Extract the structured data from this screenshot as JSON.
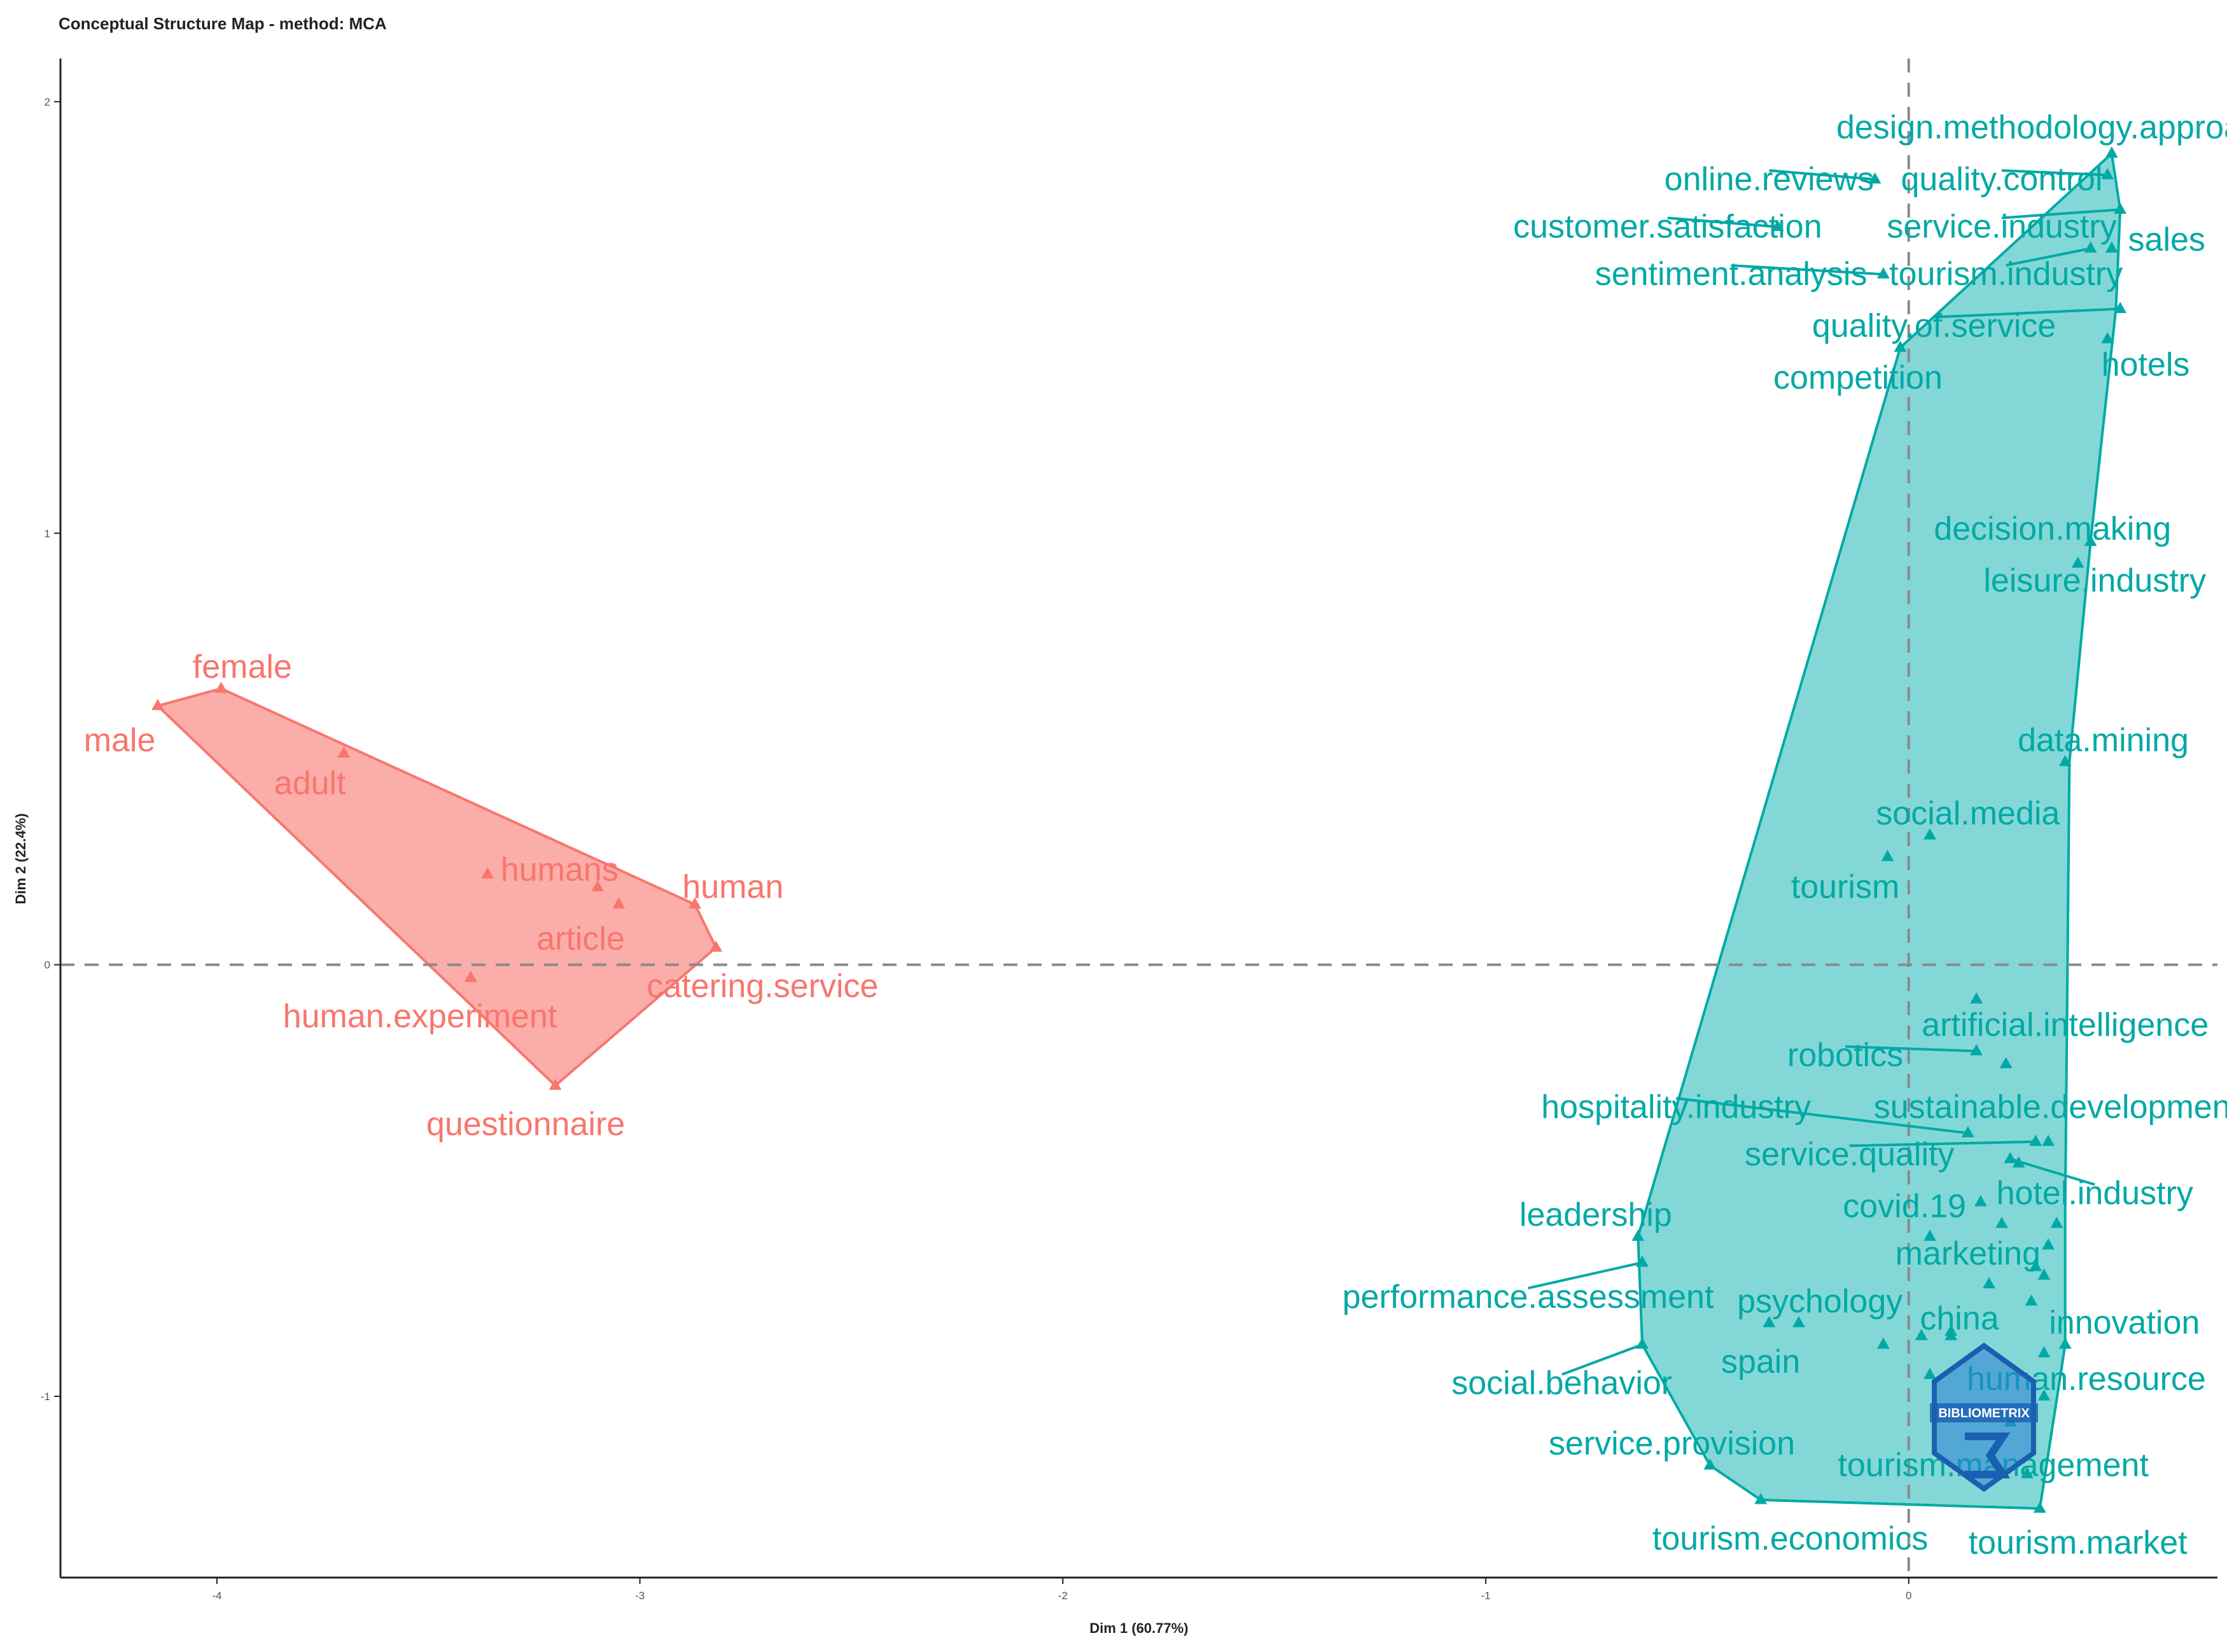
{
  "chart_data": {
    "type": "scatter",
    "title": "Conceptual Structure Map - method: MCA",
    "xlabel": "Dim 1 (60.77%)",
    "ylabel": "Dim 2 (22.4%)",
    "xlim": [
      -4.37,
      0.73
    ],
    "ylim": [
      -1.42,
      2.1
    ],
    "x_ticks": [
      {
        "value": -4,
        "label": "-4"
      },
      {
        "value": -3,
        "label": "-3"
      },
      {
        "value": -2,
        "label": "-2"
      },
      {
        "value": -1,
        "label": "-1"
      },
      {
        "value": 0,
        "label": "0"
      }
    ],
    "y_ticks": [
      {
        "value": -1,
        "label": "-1"
      },
      {
        "value": 0,
        "label": "0"
      },
      {
        "value": 1,
        "label": "1"
      },
      {
        "value": 2,
        "label": "2"
      }
    ],
    "reference_lines": {
      "x": 0,
      "y": 0,
      "style": "dashed"
    },
    "grid": false,
    "legend": "none",
    "watermark_text": "BIBLIOMETRIX",
    "clusters": [
      {
        "id": 1,
        "color": "#F8766D",
        "fill": "#FBA9A4",
        "hull": [
          [
            -4.14,
            0.6
          ],
          [
            -3.99,
            0.64
          ],
          [
            -2.87,
            0.14
          ],
          [
            -2.82,
            0.04
          ],
          [
            -3.2,
            -0.28
          ]
        ],
        "points": [
          {
            "label": "female",
            "x": -3.99,
            "y": 0.64,
            "lx": -3.94,
            "ly": 0.69
          },
          {
            "label": "male",
            "x": -4.14,
            "y": 0.6,
            "lx": -4.23,
            "ly": 0.52
          },
          {
            "label": "adult",
            "x": -3.7,
            "y": 0.49,
            "lx": -3.78,
            "ly": 0.42
          },
          {
            "label": "humans",
            "x": -3.1,
            "y": 0.18,
            "lx": -3.19,
            "ly": 0.22
          },
          {
            "label": "article",
            "x": -3.05,
            "y": 0.14,
            "lx": -3.14,
            "ly": 0.06
          },
          {
            "label": "human",
            "x": -2.87,
            "y": 0.14,
            "lx": -2.78,
            "ly": 0.18
          },
          {
            "label": "catering.service",
            "x": -2.82,
            "y": 0.04,
            "lx": -2.71,
            "ly": -0.05
          },
          {
            "label": "human.experiment",
            "x": -3.4,
            "y": -0.03,
            "lx": -3.52,
            "ly": -0.12
          },
          {
            "label": "questionnaire",
            "x": -3.2,
            "y": -0.28,
            "lx": -3.27,
            "ly": -0.37
          }
        ],
        "extra_points": [
          [
            -3.36,
            0.21
          ]
        ]
      },
      {
        "id": 2,
        "color": "#00A9A5",
        "fill": "#7CD6D5",
        "hull": [
          [
            -0.02,
            1.43
          ],
          [
            0.48,
            1.88
          ],
          [
            0.5,
            1.75
          ],
          [
            0.49,
            1.52
          ],
          [
            0.43,
            0.98
          ],
          [
            0.38,
            0.47
          ],
          [
            0.37,
            -0.57
          ],
          [
            0.37,
            -0.88
          ],
          [
            0.31,
            -1.26
          ],
          [
            -0.35,
            -1.24
          ],
          [
            -0.47,
            -1.16
          ],
          [
            -0.63,
            -0.88
          ],
          [
            -0.64,
            -0.63
          ]
        ],
        "points": [
          {
            "label": "design.methodology.approach",
            "x": 0.48,
            "y": 1.88,
            "lx": 0.35,
            "ly": 1.94
          },
          {
            "label": "online.reviews",
            "x": -0.08,
            "y": 1.82,
            "lx": -0.33,
            "ly": 1.82
          },
          {
            "label": "quality.control",
            "x": 0.47,
            "y": 1.83,
            "lx": 0.22,
            "ly": 1.82
          },
          {
            "label": "customer.satisfaction",
            "x": -0.31,
            "y": 1.71,
            "lx": -0.57,
            "ly": 1.71
          },
          {
            "label": "service.industry",
            "x": 0.5,
            "y": 1.75,
            "lx": 0.22,
            "ly": 1.71
          },
          {
            "label": "sales",
            "x": 0.48,
            "y": 1.66,
            "lx": 0.61,
            "ly": 1.68
          },
          {
            "label": "sentiment.analysis",
            "x": -0.06,
            "y": 1.6,
            "lx": -0.42,
            "ly": 1.6
          },
          {
            "label": "tourism.industry",
            "x": 0.43,
            "y": 1.66,
            "lx": 0.23,
            "ly": 1.6
          },
          {
            "label": "quality.of.service",
            "x": 0.5,
            "y": 1.52,
            "lx": 0.06,
            "ly": 1.48
          },
          {
            "label": "hotels",
            "x": 0.47,
            "y": 1.45,
            "lx": 0.56,
            "ly": 1.39
          },
          {
            "label": "competition",
            "x": -0.02,
            "y": 1.43,
            "lx": -0.12,
            "ly": 1.36
          },
          {
            "label": "decision.making",
            "x": 0.43,
            "y": 0.98,
            "lx": 0.34,
            "ly": 1.01
          },
          {
            "label": "leisure.industry",
            "x": 0.4,
            "y": 0.93,
            "lx": 0.44,
            "ly": 0.89
          },
          {
            "label": "data.mining",
            "x": 0.37,
            "y": 0.47,
            "lx": 0.46,
            "ly": 0.52
          },
          {
            "label": "social.media",
            "x": 0.05,
            "y": 0.3,
            "lx": 0.14,
            "ly": 0.35
          },
          {
            "label": "tourism",
            "x": -0.05,
            "y": 0.25,
            "lx": -0.15,
            "ly": 0.18
          },
          {
            "label": "artificial.intelligence",
            "x": 0.23,
            "y": -0.23,
            "lx": 0.37,
            "ly": -0.14
          },
          {
            "label": "robotics",
            "x": 0.16,
            "y": -0.2,
            "lx": -0.15,
            "ly": -0.21
          },
          {
            "label": "hospitality.industry",
            "x": 0.14,
            "y": -0.39,
            "lx": -0.55,
            "ly": -0.33
          },
          {
            "label": "sustainable.development",
            "x": 0.26,
            "y": -0.46,
            "lx": 0.35,
            "ly": -0.33
          },
          {
            "label": "service.quality",
            "x": 0.3,
            "y": -0.41,
            "lx": -0.14,
            "ly": -0.44
          },
          {
            "label": "hotel.industry",
            "x": 0.24,
            "y": -0.45,
            "lx": 0.44,
            "ly": -0.53
          },
          {
            "label": "covid.19",
            "x": 0.17,
            "y": -0.55,
            "lx": -0.01,
            "ly": -0.56
          },
          {
            "label": "leadership",
            "x": -0.64,
            "y": -0.63,
            "lx": -0.74,
            "ly": -0.58
          },
          {
            "label": "marketing",
            "x": 0.3,
            "y": -0.7,
            "lx": 0.14,
            "ly": -0.67
          },
          {
            "label": "performance.assessment",
            "x": -0.63,
            "y": -0.69,
            "lx": -0.9,
            "ly": -0.77
          },
          {
            "label": "psychology",
            "x": -0.26,
            "y": -0.83,
            "lx": -0.21,
            "ly": -0.78
          },
          {
            "label": "china",
            "x": 0.1,
            "y": -0.85,
            "lx": 0.12,
            "ly": -0.82
          },
          {
            "label": "innovation",
            "x": 0.37,
            "y": -0.88,
            "lx": 0.51,
            "ly": -0.83
          },
          {
            "label": "spain",
            "x": -0.33,
            "y": -0.83,
            "lx": -0.35,
            "ly": -0.92
          },
          {
            "label": "human.resource",
            "x": 0.32,
            "y": -1.0,
            "lx": 0.42,
            "ly": -0.96
          },
          {
            "label": "social.behavior",
            "x": -0.63,
            "y": -0.88,
            "lx": -0.82,
            "ly": -0.97
          },
          {
            "label": "service.provision",
            "x": -0.47,
            "y": -1.16,
            "lx": -0.56,
            "ly": -1.11
          },
          {
            "label": "tourism.management",
            "x": 0.28,
            "y": -1.18,
            "lx": 0.2,
            "ly": -1.16
          },
          {
            "label": "tourism.economics",
            "x": -0.35,
            "y": -1.24,
            "lx": -0.28,
            "ly": -1.33
          },
          {
            "label": "tourism.market",
            "x": 0.31,
            "y": -1.26,
            "lx": 0.4,
            "ly": -1.34
          }
        ],
        "extra_points": [
          [
            0.16,
            -0.08
          ],
          [
            0.33,
            -0.41
          ],
          [
            0.22,
            -0.6
          ],
          [
            0.35,
            -0.6
          ],
          [
            0.33,
            -0.65
          ],
          [
            0.05,
            -0.63
          ],
          [
            0.32,
            -0.72
          ],
          [
            0.19,
            -0.74
          ],
          [
            0.29,
            -0.78
          ],
          [
            -0.06,
            -0.88
          ],
          [
            0.03,
            -0.86
          ],
          [
            0.1,
            -0.86
          ],
          [
            0.32,
            -0.9
          ],
          [
            0.05,
            -0.95
          ],
          [
            0.24,
            -1.06
          ]
        ]
      }
    ]
  }
}
